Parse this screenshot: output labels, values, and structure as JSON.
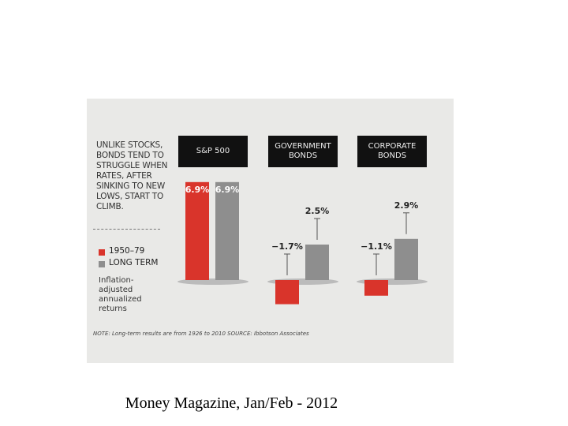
{
  "chart_data": {
    "type": "bar",
    "title": "UNLIKE STOCKS, BONDS TEND TO STRUGGLE WHEN RATES, AFTER SINKING TO NEW LOWS, START TO CLIMB.",
    "categories": [
      "S&P 500",
      "GOVERNMENT BONDS",
      "CORPORATE BONDS"
    ],
    "series": [
      {
        "name": "1950–79",
        "color": "#d9342b",
        "values": [
          6.9,
          -1.7,
          -1.1
        ],
        "value_labels": [
          "6.9%",
          "−1.7%",
          "−1.1%"
        ]
      },
      {
        "name": "LONG TERM",
        "color": "#8e8e8e",
        "values": [
          6.9,
          2.5,
          2.9
        ],
        "value_labels": [
          "6.9%",
          "2.5%",
          "2.9%"
        ]
      }
    ],
    "note": "Inflation-adjusted annualized returns",
    "footnote": "NOTE: Long-term results are from 1926 to 2010 SOURCE: Ibbotson Associates"
  },
  "caption": "Money Magazine, Jan/Feb - 2012"
}
